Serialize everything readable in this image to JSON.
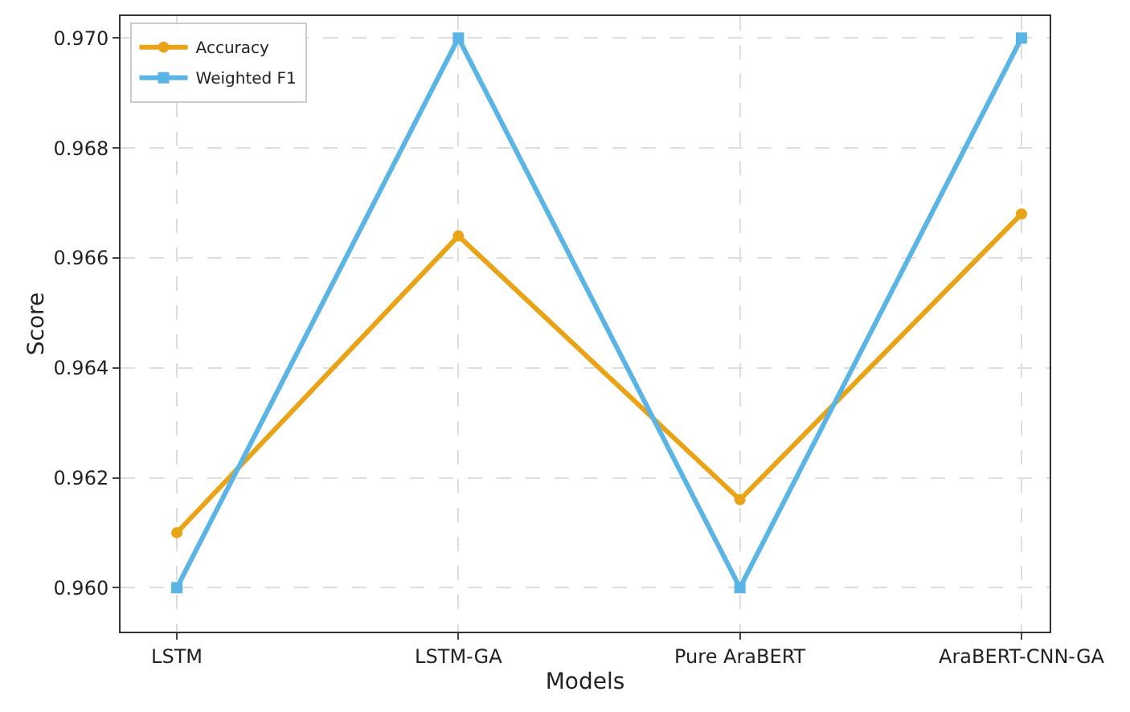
{
  "chart_data": {
    "type": "line",
    "xlabel": "Models",
    "ylabel": "Score",
    "categories": [
      "LSTM",
      "LSTM-GA",
      "Pure AraBERT",
      "AraBERT-CNN-GA"
    ],
    "series": [
      {
        "name": "Accuracy",
        "color": "#e8a317",
        "marker": "circle",
        "values": [
          0.961,
          0.9664,
          0.9616,
          0.9668
        ]
      },
      {
        "name": "Weighted F1",
        "color": "#5ab4e5",
        "marker": "square",
        "values": [
          0.96,
          0.97,
          0.96,
          0.97
        ]
      }
    ],
    "ylim": [
      0.9592,
      0.9704
    ],
    "yticks": [
      {
        "value": 0.96,
        "label": "0.960"
      },
      {
        "value": 0.962,
        "label": "0.962"
      },
      {
        "value": 0.964,
        "label": "0.964"
      },
      {
        "value": 0.966,
        "label": "0.966"
      },
      {
        "value": 0.968,
        "label": "0.968"
      },
      {
        "value": 0.97,
        "label": "0.970"
      }
    ],
    "grid": true,
    "legend": "top left",
    "line_style": "solid"
  }
}
